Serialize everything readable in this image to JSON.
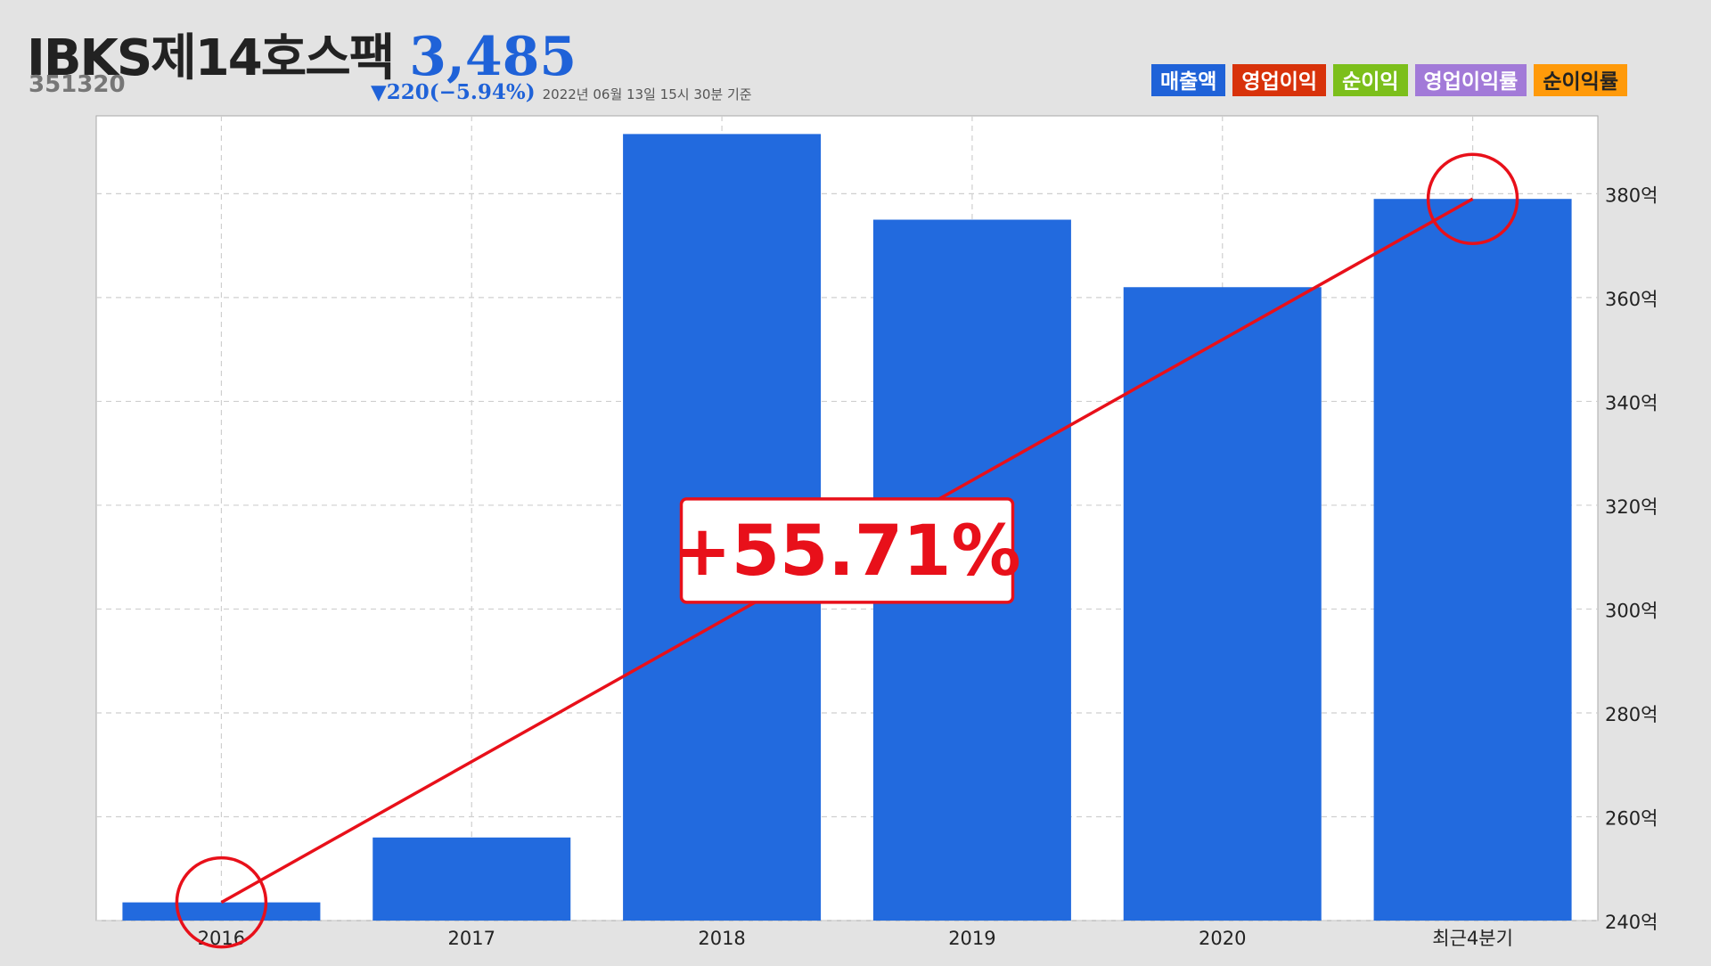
{
  "stock": {
    "name": "IBKS제14호스팩",
    "price": "3,485",
    "code": "351320",
    "change": "▼220(−5.94%)",
    "asof": "2022년 06월 13일 15시 30분 기준"
  },
  "legend": [
    {
      "label": "매출액",
      "color": "#1f62d8"
    },
    {
      "label": "영업이익",
      "color": "#d8320a"
    },
    {
      "label": "순이익",
      "color": "#7cbf1b"
    },
    {
      "label": "영업이익률",
      "color": "#a27ad8"
    },
    {
      "label": "순이익률",
      "color": "#ff9a0a"
    }
  ],
  "annotation": {
    "label": "+55.71%",
    "color": "#e8101a"
  },
  "chart_data": {
    "type": "bar",
    "categories": [
      "2016",
      "2017",
      "2018",
      "2019",
      "2020",
      "최근4분기"
    ],
    "values": [
      243.5,
      256,
      391.5,
      375,
      362,
      379
    ],
    "ylim": [
      240,
      395
    ],
    "yticks": [
      240,
      260,
      280,
      300,
      320,
      340,
      360,
      380
    ],
    "ytick_suffix": "억",
    "bar_color": "#226ade",
    "grid": true,
    "y_axis_side": "right"
  }
}
